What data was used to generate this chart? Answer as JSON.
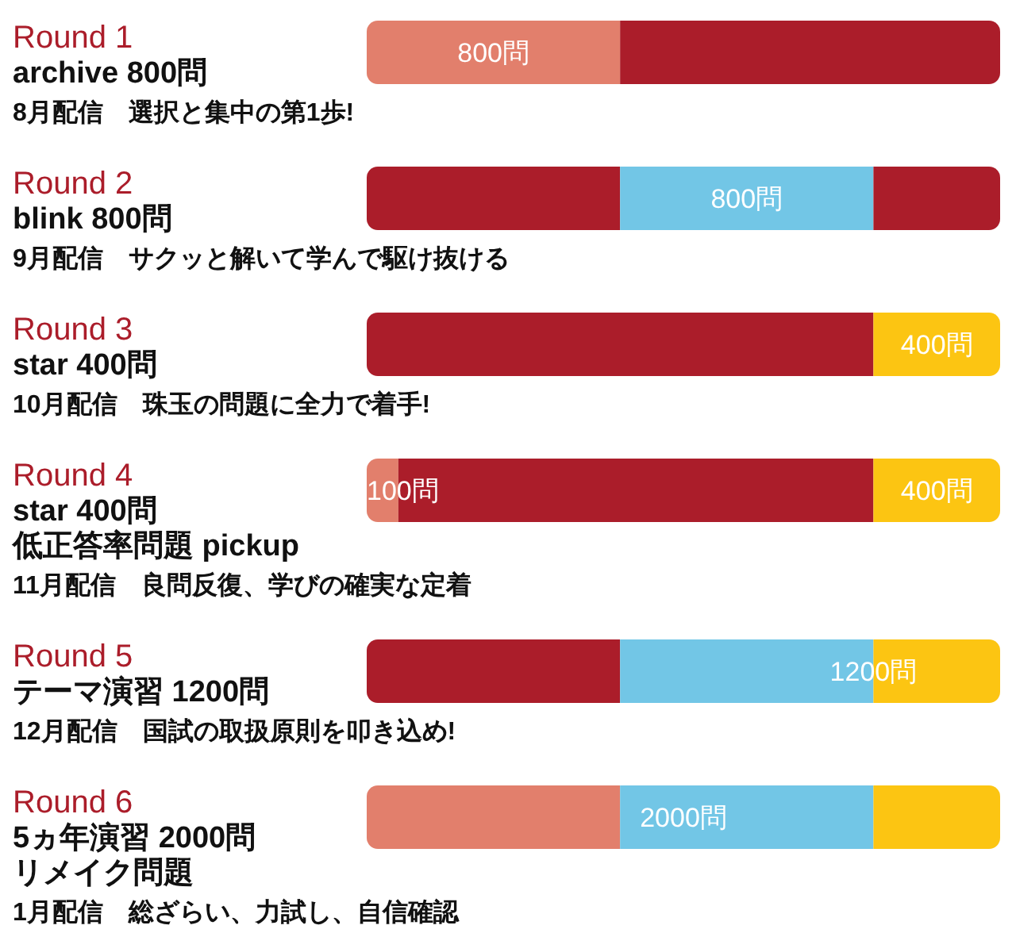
{
  "chart_data": {
    "type": "bar",
    "orientation": "horizontal",
    "stacked": true,
    "categories": [
      "Round 1\narchive 800問",
      "Round 2\nblink 800問",
      "Round 3\nstar 400問",
      "Round 4\nstar 400問",
      "Round 5\nテーマ演習 1200問",
      "Round 6\n5ヵ年演習 2000問"
    ],
    "series": [
      {
        "color": "#e27f6c",
        "values": [
          800,
          null,
          null,
          100,
          null,
          800
        ],
        "value_labels": [
          "800問",
          null,
          null,
          "100問",
          null,
          null
        ]
      },
      {
        "color": "#ab1d2a",
        "values": [
          1200,
          800,
          1600,
          1500,
          800,
          null
        ]
      },
      {
        "color": "#72c6e6",
        "values": [
          null,
          800,
          null,
          null,
          800,
          800
        ],
        "value_labels": [
          null,
          "800問",
          null,
          null,
          null,
          null
        ]
      },
      {
        "color": "#ab1d2a",
        "values": [
          null,
          400,
          null,
          null,
          null,
          null
        ]
      },
      {
        "color": "#fcc512",
        "values": [
          null,
          null,
          400,
          400,
          400,
          400
        ],
        "value_labels": [
          null,
          null,
          "400問",
          "400問",
          null,
          null
        ]
      }
    ],
    "totals": [
      null,
      null,
      null,
      null,
      null,
      "2000問"
    ],
    "xlim": [
      0,
      2000
    ],
    "tick_labels": "y",
    "annotations": [
      "8月配信　選択と集中の第1歩!",
      "9月配信　サクッと解いて学んで駆け抜ける",
      "10月配信　珠玉の問題に全力で着手!",
      "低正答率問題 pickup\n11月配信　良問反復、学びの確実な定着",
      "12月配信　国試の取扱原則を叩き込め!",
      "リメイク問題\n1月配信　総ざらい、力試し、自信確認",
      {
        "text": "1200問",
        "x": 1600,
        "y": "Round 5\nテーマ演習 1200問"
      }
    ]
  }
}
